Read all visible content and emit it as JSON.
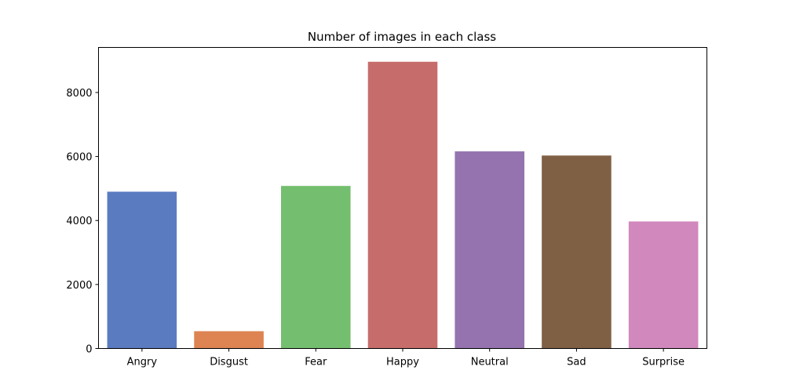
{
  "chart_data": {
    "type": "bar",
    "title": "Number of images in each class",
    "xlabel": "",
    "ylabel": "",
    "categories": [
      "Angry",
      "Disgust",
      "Fear",
      "Happy",
      "Neutral",
      "Sad",
      "Surprise"
    ],
    "values": [
      4900,
      540,
      5080,
      8960,
      6160,
      6030,
      3970
    ],
    "colors": [
      "#5a7bc0",
      "#dd8452",
      "#74bf6f",
      "#c66d6b",
      "#9473ae",
      "#806045",
      "#d188bd"
    ],
    "yticks": [
      0,
      2000,
      4000,
      6000,
      8000
    ],
    "ylim": [
      0,
      9408
    ],
    "grid": false,
    "legend": "none"
  }
}
